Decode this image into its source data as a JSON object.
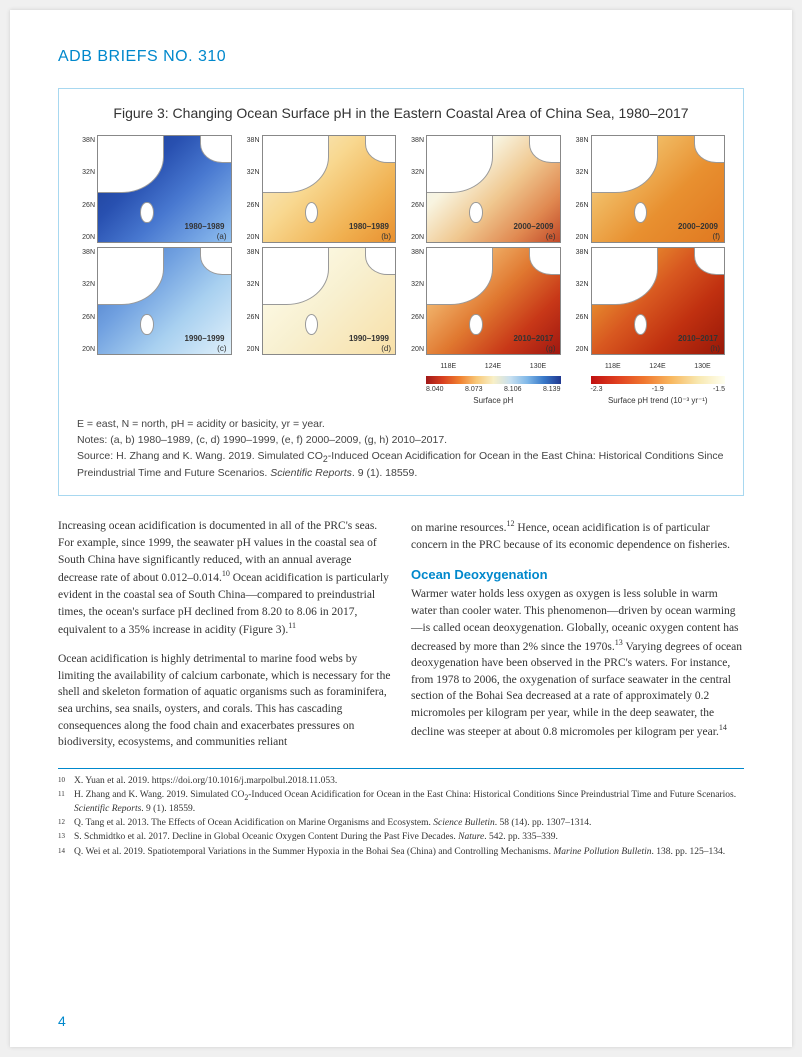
{
  "header": "ADB BRIEFS NO. 310",
  "pageNumber": "4",
  "figure": {
    "title": "Figure 3: Changing Ocean Surface pH in the Eastern Coastal Area of China Sea, 1980–2017",
    "yTicks": [
      "38N",
      "32N",
      "26N",
      "20N"
    ],
    "xTicks": [
      "118E",
      "124E",
      "130E"
    ],
    "panels": [
      {
        "period": "1980–1989",
        "letter": "(a)",
        "scheme": "ph_dark"
      },
      {
        "period": "1980–1989",
        "letter": "(b)",
        "scheme": "trend_mid"
      },
      {
        "period": "2000–2009",
        "letter": "(e)",
        "scheme": "ph_mid"
      },
      {
        "period": "2000–2009",
        "letter": "(f)",
        "scheme": "trend_warm"
      },
      {
        "period": "1990–1999",
        "letter": "(c)",
        "scheme": "ph_light"
      },
      {
        "period": "1990–1999",
        "letter": "(d)",
        "scheme": "trend_light"
      },
      {
        "period": "2010–2017",
        "letter": "(g)",
        "scheme": "ph_warm"
      },
      {
        "period": "2010–2017",
        "letter": "(h)",
        "scheme": "trend_hot"
      }
    ],
    "colorbar1": {
      "gradient": "linear-gradient(to right, #a01818, #d84020, #f08030, #f8c878, #f8f0c8, #c8e0f0, #80b8e8, #3878c8, #203890)",
      "ticks": [
        "8.040",
        "8.073",
        "8.106",
        "8.139"
      ],
      "title": "Surface pH"
    },
    "colorbar2": {
      "gradient": "linear-gradient(to right, #c01010, #e04020, #f07830, #f8b860, #f8e8b0, #fffff0)",
      "ticks": [
        "-2.3",
        "-1.9",
        "-1.5"
      ],
      "title": "Surface pH trend (10⁻³ yr⁻¹)"
    },
    "schemes": {
      "ph_dark": "linear-gradient(135deg, #1a3a8a 0%, #2850b0 35%, #4878d0 60%, #90c0f0 100%)",
      "ph_light": "linear-gradient(135deg, #4070c0 0%, #70a0e0 35%, #a8d0f0 65%, #e0f0fa 100%)",
      "ph_mid": "linear-gradient(135deg, #e8f4fc 0%, #f8f4e0 30%, #f0c890 55%, #e08850 80%, #c04828 100%)",
      "ph_warm": "linear-gradient(135deg, #f8e8c8 0%, #f0b068 25%, #e07830 50%, #c83818 75%, #a01810 100%)",
      "trend_mid": "linear-gradient(135deg, #f8f0d8 0%, #f8d890 40%, #f0b050 75%, #e89030 100%)",
      "trend_light": "linear-gradient(135deg, #fffff0 0%, #f8f0d0 50%, #f8e0a8 100%)",
      "trend_warm": "linear-gradient(135deg, #f8e0b0 0%, #f0b860 30%, #e89030 60%, #e07820 100%)",
      "trend_hot": "linear-gradient(135deg, #f0c070 0%, #e89030 20%, #d85820 45%, #c03010 70%, #981808 100%)"
    },
    "legendLine": "E = east, N = north, pH = acidity or basicity, yr = year.",
    "notesLine": "Notes: (a, b) 1980–1989, (c, d) 1990–1999, (e, f) 2000–2009, (g, h) 2010–2017.",
    "sourcePrefix": "Source: H. Zhang and K. Wang. 2019. Simulated CO",
    "sourceSub": "2",
    "sourceMid": "-Induced Ocean Acidification for Ocean in the East China: Historical Conditions Since Preindustrial Time and Future Scenarios. ",
    "sourceItalic": "Scientific Reports",
    "sourceSuffix": ". 9 (1). 18559."
  },
  "body": {
    "p1a": "Increasing ocean acidification is documented in all of the PRC's seas. For example, since 1999, the seawater pH values in the coastal sea of South China have significantly reduced, with an annual average decrease rate of about 0.012–0.014.",
    "p1b": " Ocean acidification is particularly evident in the coastal sea of South China—compared to preindustrial times, the ocean's surface pH declined from 8.20 to 8.06 in 2017, equivalent to a 35% increase in acidity (Figure 3).",
    "p2": "Ocean acidification is highly detrimental to marine food webs by limiting the availability of calcium carbonate, which is necessary for the shell and skeleton formation of aquatic organisms such as foraminifera, sea urchins, sea snails, oysters, and corals. This has cascading consequences along the food chain and exacerbates pressures on biodiversity, ecosystems, and communities reliant",
    "p3a": "on marine resources.",
    "p3b": " Hence, ocean acidification is of particular concern in the PRC because of its economic dependence on fisheries.",
    "h1": "Ocean Deoxygenation",
    "p4a": "Warmer water holds less oxygen as oxygen is less soluble in warm water than cooler water. This phenomenon—driven by ocean warming—is called ocean deoxygenation. Globally, oceanic oxygen content has decreased by more than 2% since the 1970s.",
    "p4b": " Varying degrees of ocean deoxygenation have been observed in the PRC's waters. For instance, from 1978 to 2006, the oxygenation of surface seawater in the central section of the Bohai Sea decreased at a rate of approximately 0.2 micromoles per kilogram per year, while in the deep seawater, the decline was steeper at about 0.8 micromoles per kilogram per year."
  },
  "footnotes": [
    {
      "n": "10",
      "text": "X. Yuan et al. 2019. https://doi.org/10.1016/j.marpolbul.2018.11.053."
    },
    {
      "n": "11",
      "pre": "H. Zhang and K. Wang. 2019. Simulated CO",
      "sub": "2",
      "mid": "-Induced Ocean Acidification for Ocean in the East China: Historical Conditions Since Preindustrial Time and Future Scenarios. ",
      "italic": "Scientific Reports",
      "post": ". 9 (1). 18559."
    },
    {
      "n": "12",
      "pre": "Q. Tang et al. 2013. The Effects of Ocean Acidification on Marine Organisms and Ecosystem. ",
      "italic": "Science Bulletin",
      "post": ". 58 (14). pp. 1307–1314."
    },
    {
      "n": "13",
      "pre": "S. Schmidtko et al. 2017. Decline in Global Oceanic Oxygen Content During the Past Five Decades. ",
      "italic": "Nature",
      "post": ". 542. pp. 335–339."
    },
    {
      "n": "14",
      "pre": "Q. Wei et al. 2019. Spatiotemporal Variations in the Summer Hypoxia in the Bohai Sea (China) and Controlling Mechanisms. ",
      "italic": "Marine Pollution Bulletin",
      "post": ". 138. pp. 125–134."
    }
  ]
}
